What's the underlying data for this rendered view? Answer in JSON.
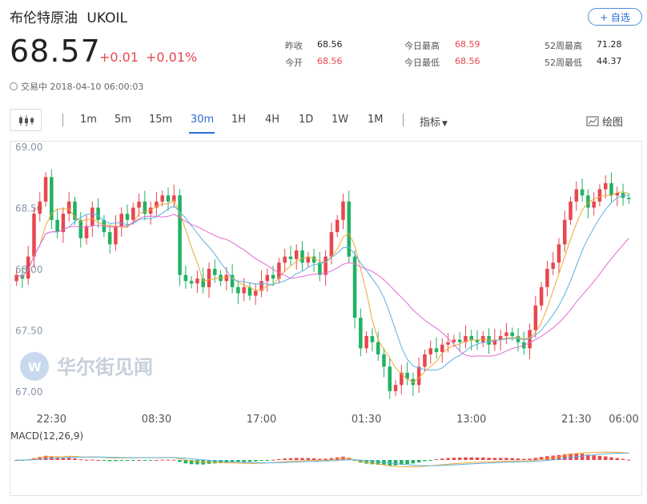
{
  "header": {
    "title": "布伦特原油",
    "symbol": "UKOIL",
    "follow_label": "+ 自选",
    "price": "68.57",
    "change": "+0.01",
    "change_pct": "+0.01%",
    "status_time": "交易中 2018-04-10 06:00:03"
  },
  "stats": [
    {
      "label": "昨收",
      "value": "68.56",
      "red": false
    },
    {
      "label": "今日最高",
      "value": "68.59",
      "red": true
    },
    {
      "label": "52周最高",
      "value": "71.28",
      "red": false
    },
    {
      "label": "今开",
      "value": "68.56",
      "red": true
    },
    {
      "label": "今日最低",
      "value": "68.56",
      "red": true
    },
    {
      "label": "52周最低",
      "value": "44.37",
      "red": false
    }
  ],
  "toolbar": {
    "intervals": [
      "1m",
      "5m",
      "15m",
      "30m",
      "1H",
      "4H",
      "1D",
      "1W",
      "1M"
    ],
    "active": "30m",
    "indicator_label": "指标",
    "draw_label": "绘图"
  },
  "watermark": "华尔街见闻",
  "colors": {
    "up": "#e8474f",
    "down": "#20b262",
    "ma_short": "#f2a634",
    "ma_mid": "#5ab1e2",
    "ma_long": "#e36bd1",
    "accent": "#2b6fd6"
  },
  "chart_data": {
    "type": "candlestick",
    "y_ticks": [
      "69.00",
      "68.50",
      "68.00",
      "67.50",
      "67.00"
    ],
    "ylim": [
      66.96,
      69.04
    ],
    "x_ticks": [
      "22:30",
      "08:30",
      "17:00",
      "01:30",
      "13:00",
      "21:30",
      "06:00"
    ],
    "macd_label": "MACD(12,26,9)",
    "closes": [
      67.95,
      67.92,
      68.1,
      68.45,
      68.55,
      68.75,
      68.4,
      68.3,
      68.45,
      68.55,
      68.4,
      68.25,
      68.35,
      68.5,
      68.4,
      68.3,
      68.2,
      68.35,
      68.45,
      68.4,
      68.5,
      68.55,
      68.45,
      68.5,
      68.55,
      68.6,
      68.55,
      68.6,
      67.95,
      67.9,
      67.88,
      67.92,
      67.85,
      68.0,
      67.95,
      67.9,
      67.95,
      67.85,
      67.8,
      67.85,
      67.78,
      67.82,
      67.9,
      67.95,
      67.92,
      68.05,
      68.1,
      68.08,
      68.15,
      68.05,
      68.1,
      68.05,
      67.95,
      68.1,
      68.3,
      68.4,
      68.55,
      68.1,
      67.6,
      67.35,
      67.45,
      67.4,
      67.3,
      67.2,
      67.0,
      67.05,
      67.15,
      67.1,
      67.05,
      67.2,
      67.3,
      67.35,
      67.32,
      67.38,
      67.4,
      67.42,
      67.4,
      67.45,
      67.42,
      67.4,
      67.45,
      67.38,
      67.42,
      67.45,
      67.48,
      67.45,
      67.4,
      67.35,
      67.5,
      67.7,
      67.85,
      68.0,
      68.05,
      68.2,
      68.4,
      68.55,
      68.65,
      68.6,
      68.5,
      68.55,
      68.65,
      68.7,
      68.6,
      68.62,
      68.58,
      68.57
    ]
  }
}
